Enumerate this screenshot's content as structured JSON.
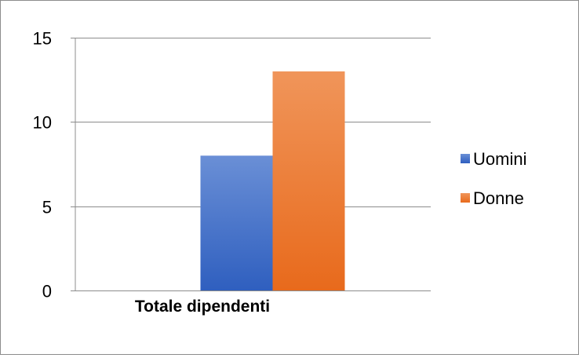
{
  "chart_data": {
    "type": "bar",
    "categories": [
      "Totale dipendenti"
    ],
    "series": [
      {
        "name": "Uomini",
        "values": [
          8
        ],
        "color": "#4472C4"
      },
      {
        "name": "Donne",
        "values": [
          13
        ],
        "color": "#ED7D31"
      }
    ],
    "ylim": [
      0,
      15
    ],
    "yticks": [
      0,
      5,
      10,
      15
    ],
    "grid": true,
    "legend": "right",
    "title": "",
    "xlabel": "",
    "ylabel": ""
  }
}
